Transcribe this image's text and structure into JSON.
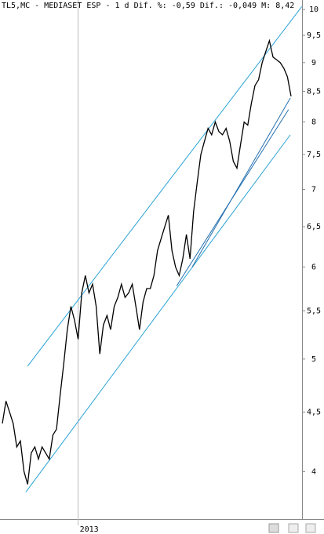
{
  "chart_data": {
    "type": "line",
    "title": "TL5,MC - MEDIASET ESP -  1 d Dif. %: -0,59 Dif.: -0,049 M: 8,42",
    "categories": [
      null,
      null,
      null,
      null,
      null,
      null,
      null,
      null,
      null,
      null,
      null,
      null,
      null,
      null,
      null,
      null,
      null,
      null,
      null,
      null,
      null,
      "2013",
      null,
      null,
      null,
      null,
      null,
      null,
      null,
      null,
      null,
      null,
      null,
      null,
      null,
      null,
      null,
      null,
      null,
      null,
      null,
      null,
      null,
      null,
      null,
      null,
      null,
      null,
      null,
      null,
      null,
      null,
      null,
      null,
      null,
      null,
      null,
      null,
      null,
      null,
      null,
      null,
      null,
      null,
      null,
      null,
      null,
      null,
      null,
      null,
      null,
      null,
      null,
      null,
      null,
      null,
      null,
      null,
      null,
      null,
      null
    ],
    "series": [
      {
        "name": "MEDIASET ESP",
        "color": "#000000",
        "values": [
          4.4,
          4.6,
          4.5,
          4.4,
          4.2,
          4.25,
          4.0,
          3.9,
          4.15,
          4.2,
          4.1,
          4.2,
          4.15,
          4.1,
          4.3,
          4.35,
          4.65,
          4.95,
          5.3,
          5.55,
          5.4,
          5.2,
          5.7,
          5.9,
          5.7,
          5.8,
          5.55,
          5.05,
          5.35,
          5.45,
          5.3,
          5.55,
          5.65,
          5.8,
          5.65,
          5.7,
          5.8,
          5.55,
          5.3,
          5.6,
          5.75,
          5.75,
          5.9,
          6.2,
          6.35,
          6.5,
          6.65,
          6.2,
          6.0,
          5.9,
          6.1,
          6.4,
          6.1,
          6.7,
          7.1,
          7.5,
          7.7,
          7.9,
          7.8,
          8.0,
          7.85,
          7.8,
          7.9,
          7.7,
          7.4,
          7.3,
          7.65,
          8.0,
          7.95,
          8.3,
          8.6,
          8.7,
          9.0,
          9.2,
          9.4,
          9.1,
          9.05,
          9.0,
          8.9,
          8.75,
          8.42
        ]
      }
    ],
    "trendlines": [
      {
        "color": "#29a3d6",
        "x": [
          7,
          83
        ],
        "values": [
          4.93,
          10.06
        ]
      },
      {
        "color": "#29a3d6",
        "x": [
          6.5,
          79.8
        ],
        "values": [
          3.84,
          7.8
        ]
      },
      {
        "color": "#2470b0",
        "x": [
          52.6,
          79.8
        ],
        "values": [
          6.0,
          8.39
        ]
      },
      {
        "color": "#2470b0",
        "x": [
          48.3,
          79.3
        ],
        "values": [
          5.78,
          8.2
        ]
      }
    ],
    "log_scale": true,
    "ylim": [
      3.64,
      10.19
    ],
    "yticks": [
      4,
      {
        "value": 4.5,
        "label": "4,5"
      },
      5,
      {
        "value": 5.5,
        "label": "5,5"
      },
      6,
      {
        "value": 6.5,
        "label": "6,5"
      },
      7,
      {
        "value": 7.5,
        "label": "7,5"
      },
      8,
      {
        "value": 8.5,
        "label": "8,5"
      },
      9,
      {
        "value": 9.5,
        "label": "9,5"
      },
      10
    ]
  }
}
